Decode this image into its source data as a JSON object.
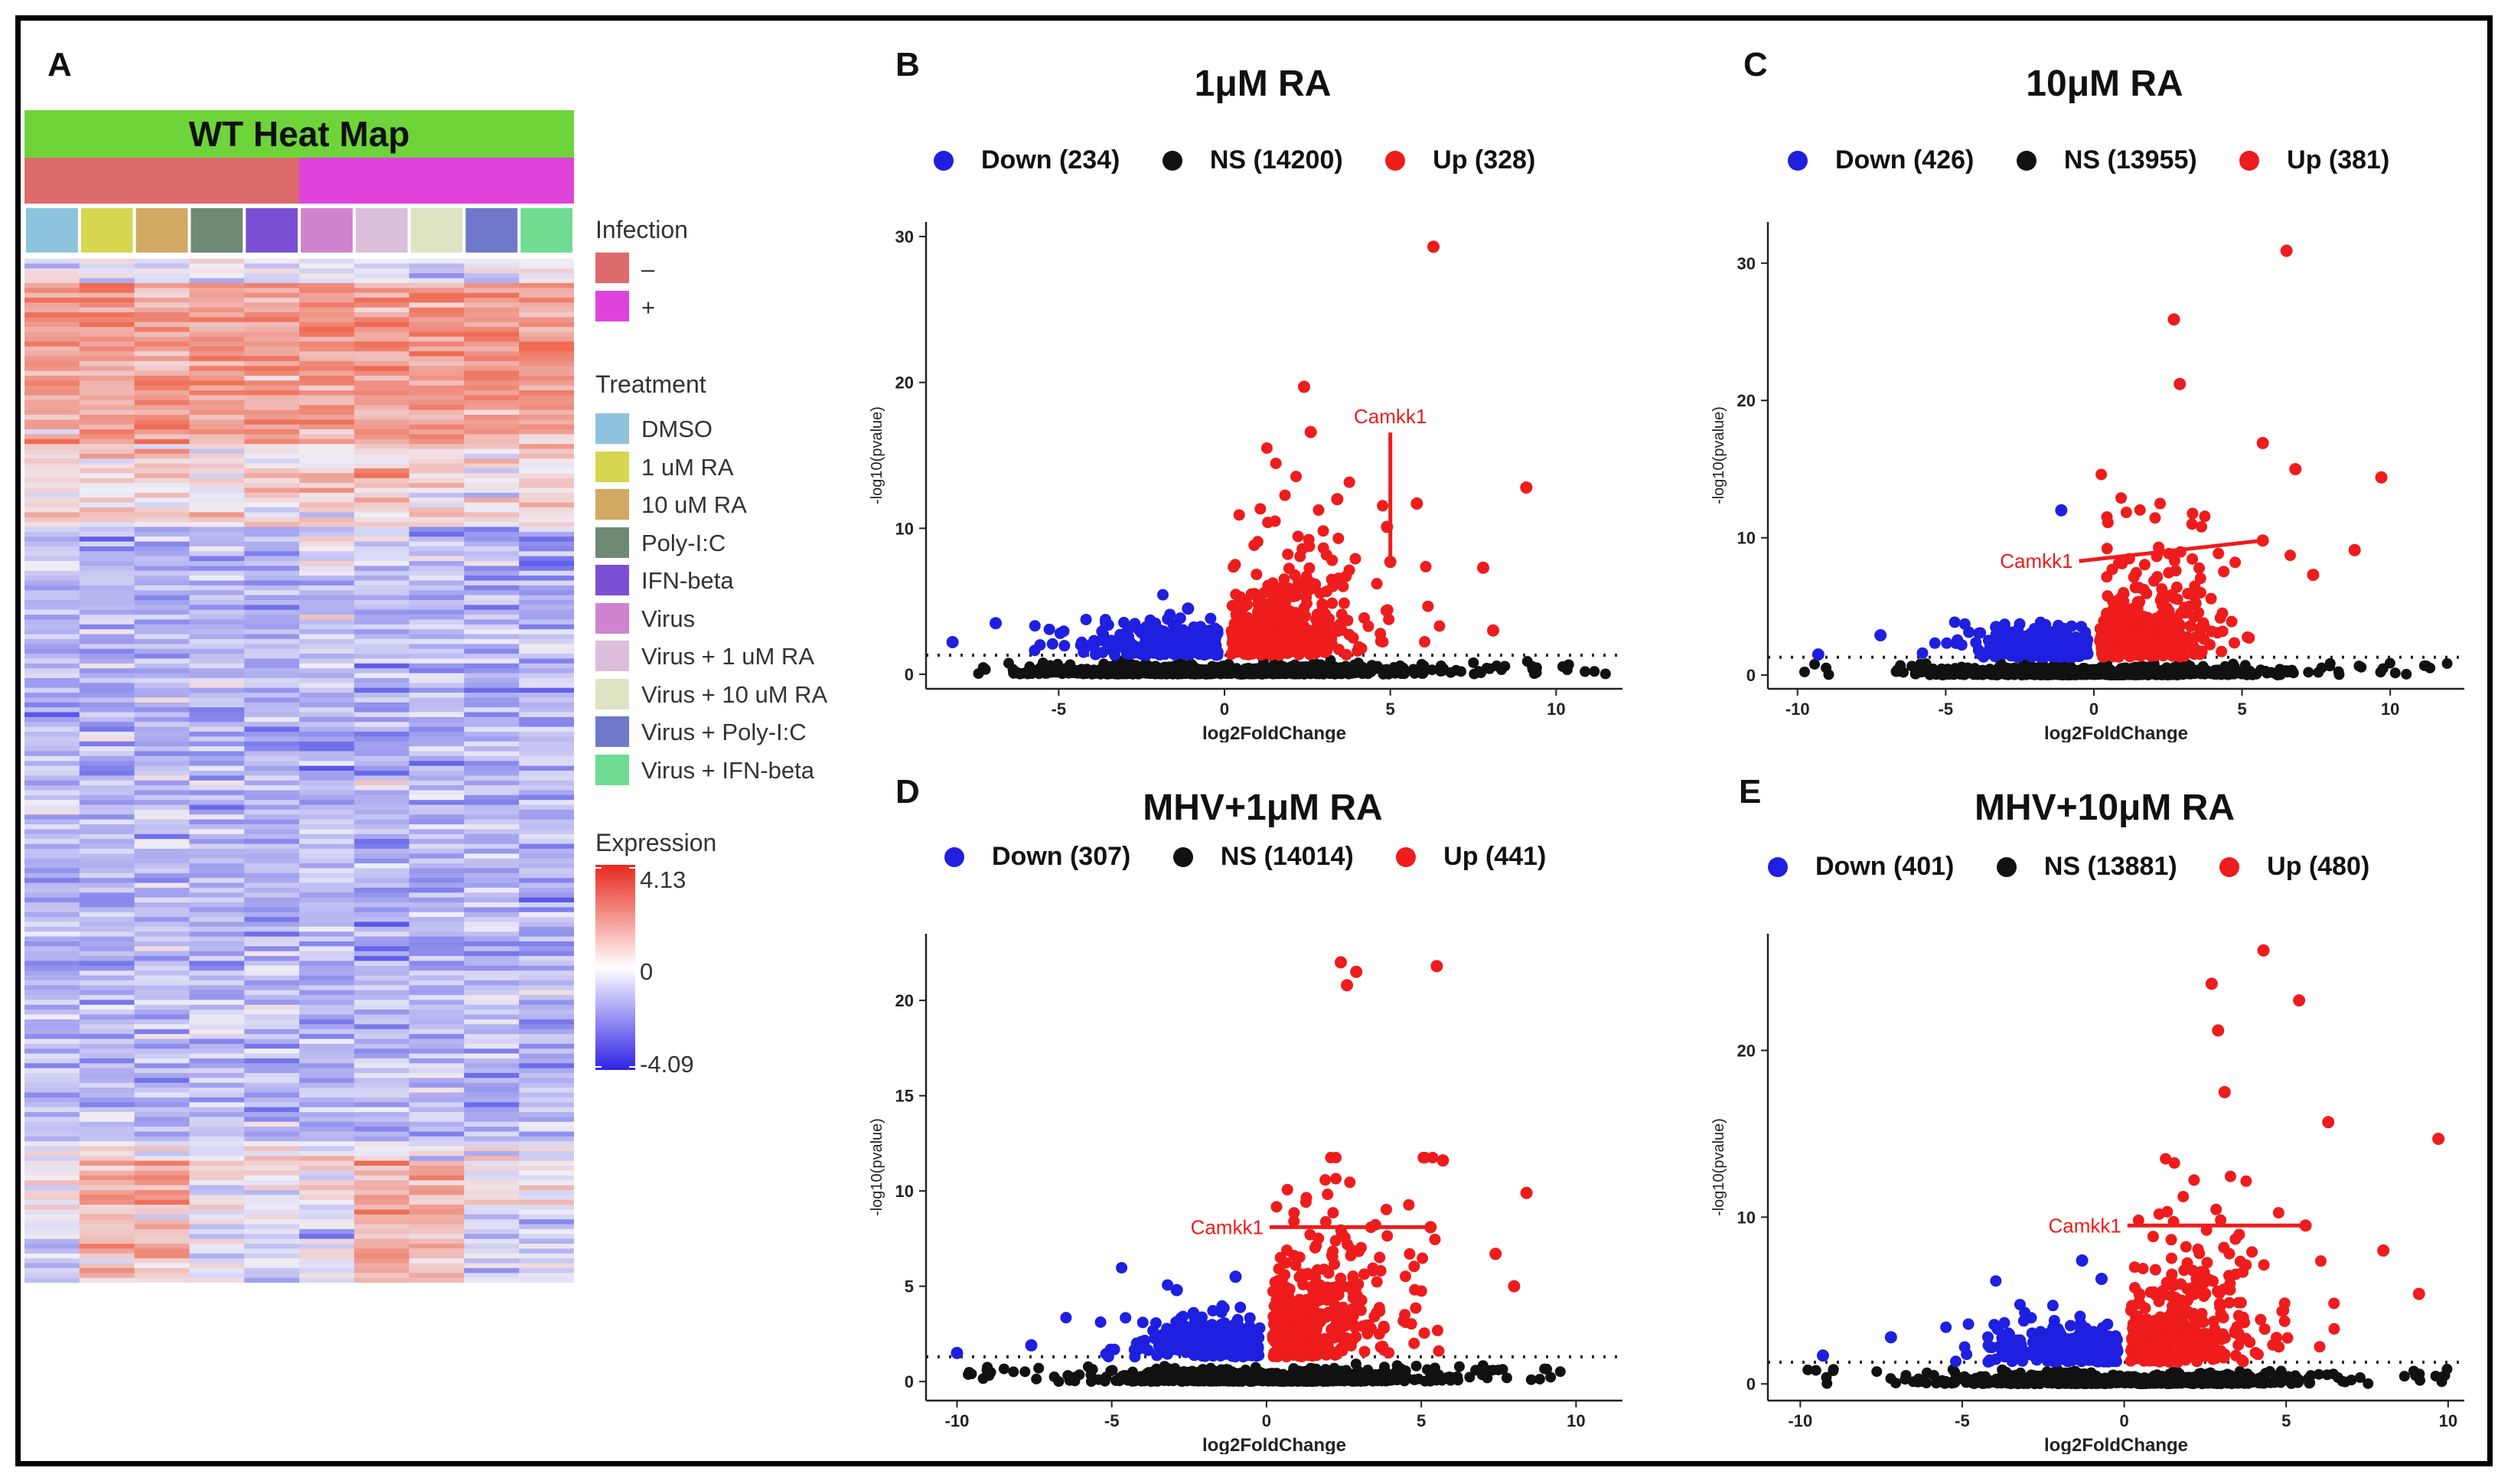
{
  "panel_labels": {
    "a": "A",
    "b": "B",
    "c": "C",
    "d": "D",
    "e": "E"
  },
  "heatmap": {
    "title": "WT Heat Map",
    "title_bar_color": "#6ed43a",
    "infection_legend": {
      "title": "Infection",
      "items": [
        {
          "label": "–",
          "color": "#dd6b6b"
        },
        {
          "label": "+",
          "color": "#e043dc"
        }
      ]
    },
    "treatment_legend": {
      "title": "Treatment",
      "items": [
        {
          "label": "DMSO",
          "color": "#8ec3dd"
        },
        {
          "label": "1 uM RA",
          "color": "#d6d64f"
        },
        {
          "label": "10 uM RA",
          "color": "#d2a863"
        },
        {
          "label": "Poly-I:C",
          "color": "#6f8a74"
        },
        {
          "label": "IFN-beta",
          "color": "#7b4fd3"
        },
        {
          "label": "Virus",
          "color": "#d084d0"
        },
        {
          "label": "Virus + 1 uM RA",
          "color": "#dbbedb"
        },
        {
          "label": "Virus + 10 uM RA",
          "color": "#dfe3c4"
        },
        {
          "label": "Virus + Poly-I:C",
          "color": "#7079c9"
        },
        {
          "label": "Virus + IFN-beta",
          "color": "#6fdc92"
        }
      ]
    },
    "expression_legend": {
      "title": "Expression",
      "max": "4.13",
      "mid": "0",
      "min": "-4.09",
      "high_color": "#e8291c",
      "low_color": "#2f22e6"
    },
    "columns": 10,
    "infection_per_column": [
      "-",
      "-",
      "-",
      "-",
      "-",
      "+",
      "+",
      "+",
      "+",
      "+"
    ]
  },
  "chart_data": [
    {
      "id": "B",
      "type": "scatter",
      "title": "1μM RA",
      "xlabel": "log2FoldChange",
      "ylabel": "-log10(pvalue)",
      "xlim": [
        -9,
        12
      ],
      "ylim": [
        -1,
        31
      ],
      "xticks": [
        -5,
        0,
        5,
        10
      ],
      "yticks": [
        0,
        10,
        20,
        30
      ],
      "legend": [
        {
          "name": "Down",
          "count": "Down (234)",
          "color": "#1f1fe0"
        },
        {
          "name": "NS",
          "count": "NS (14200)",
          "color": "#111111"
        },
        {
          "name": "Up",
          "count": "Up (328)",
          "color": "#ee1c1c"
        }
      ],
      "threshold": 1.3,
      "annotation": {
        "label": "Camkk1",
        "x": 5.0,
        "y": 7.7,
        "label_y": 17.2
      },
      "up_highlights": [
        [
          6.3,
          29.3
        ],
        [
          2.4,
          19.7
        ],
        [
          2.6,
          16.6
        ],
        [
          5.8,
          11.7
        ],
        [
          9.1,
          12.8
        ],
        [
          4.9,
          10.1
        ],
        [
          3.4,
          12.0
        ],
        [
          7.8,
          7.3
        ],
        [
          8.1,
          3.0
        ]
      ],
      "down_highlights": [
        [
          -6.9,
          3.5
        ],
        [
          -8.2,
          2.2
        ],
        [
          -1.1,
          4.5
        ],
        [
          -2.9,
          3.1
        ]
      ],
      "up_range": [
        0.1,
        9.5
      ],
      "down_range": [
        -8.5,
        -0.1
      ],
      "ns_range": [
        -8.5,
        11.5
      ]
    },
    {
      "id": "C",
      "type": "scatter",
      "title": "10μM RA",
      "xlabel": "log2FoldChange",
      "ylabel": "-log10(pvalue)",
      "xlim": [
        -11,
        12.5
      ],
      "ylim": [
        -1,
        33
      ],
      "xticks": [
        -10,
        -5,
        0,
        5,
        10
      ],
      "yticks": [
        0,
        10,
        20,
        30
      ],
      "legend": [
        {
          "name": "Down",
          "count": "Down (426)",
          "color": "#1f1fe0"
        },
        {
          "name": "NS",
          "count": "NS (13955)",
          "color": "#111111"
        },
        {
          "name": "Up",
          "count": "Up (381)",
          "color": "#ee1c1c"
        }
      ],
      "threshold": 1.3,
      "annotation": {
        "label": "Camkk1",
        "x": 5.7,
        "y": 9.8,
        "label_x": -0.5,
        "label_y": 8.3
      },
      "up_highlights": [
        [
          6.5,
          30.9
        ],
        [
          2.7,
          25.9
        ],
        [
          2.9,
          21.2
        ],
        [
          5.7,
          16.9
        ],
        [
          9.7,
          14.4
        ],
        [
          6.8,
          15.0
        ],
        [
          8.8,
          9.1
        ],
        [
          7.4,
          7.3
        ]
      ],
      "down_highlights": [
        [
          -1.1,
          12.0
        ],
        [
          -3.3,
          3.5
        ],
        [
          -7.2,
          2.9
        ],
        [
          -9.3,
          1.5
        ]
      ],
      "up_range": [
        0.1,
        9.8
      ],
      "down_range": [
        -9.8,
        -0.1
      ],
      "ns_range": [
        -10,
        12
      ]
    },
    {
      "id": "D",
      "type": "scatter",
      "title": "MHV+1μM RA",
      "xlabel": "log2FoldChange",
      "ylabel": "-log10(pvalue)",
      "xlim": [
        -11,
        11.5
      ],
      "ylim": [
        -1,
        23.5
      ],
      "xticks": [
        -10,
        -5,
        0,
        5,
        10
      ],
      "yticks": [
        0,
        5,
        10,
        15,
        20
      ],
      "legend": [
        {
          "name": "Down",
          "count": "Down (307)",
          "color": "#1f1fe0"
        },
        {
          "name": "NS",
          "count": "NS (14014)",
          "color": "#111111"
        },
        {
          "name": "Up",
          "count": "Up (441)",
          "color": "#ee1c1c"
        }
      ],
      "threshold": 1.3,
      "annotation": {
        "label": "Camkk1",
        "x": 5.3,
        "y": 8.1,
        "label_x": 0.1,
        "label_y": 8.1
      },
      "up_highlights": [
        [
          2.4,
          22.0
        ],
        [
          2.6,
          20.8
        ],
        [
          2.9,
          21.5
        ],
        [
          5.5,
          21.8
        ],
        [
          5.7,
          11.6
        ],
        [
          8.4,
          9.9
        ],
        [
          7.4,
          6.7
        ],
        [
          8.0,
          5.0
        ]
      ],
      "down_highlights": [
        [
          -1.0,
          5.5
        ],
        [
          -2.9,
          4.8
        ],
        [
          -7.6,
          1.9
        ],
        [
          -10.0,
          1.5
        ]
      ],
      "up_range": [
        0.1,
        8.5
      ],
      "down_range": [
        -10,
        -0.1
      ],
      "ns_range": [
        -10,
        10
      ]
    },
    {
      "id": "E",
      "type": "scatter",
      "title": "MHV+10μM RA",
      "xlabel": "log2FoldChange",
      "ylabel": "-log10(pvalue)",
      "xlim": [
        -11,
        10.5
      ],
      "ylim": [
        -1,
        27
      ],
      "xticks": [
        -10,
        -5,
        0,
        5,
        10
      ],
      "yticks": [
        0,
        10,
        20
      ],
      "legend": [
        {
          "name": "Down",
          "count": "Down (401)",
          "color": "#1f1fe0"
        },
        {
          "name": "NS",
          "count": "NS (13881)",
          "color": "#111111"
        },
        {
          "name": "Up",
          "count": "Up (480)",
          "color": "#ee1c1c"
        }
      ],
      "threshold": 1.3,
      "annotation": {
        "label": "Camkk1",
        "x": 5.6,
        "y": 9.5,
        "label_x": 0.1,
        "label_y": 9.5
      },
      "up_highlights": [
        [
          4.3,
          26.0
        ],
        [
          2.7,
          24.0
        ],
        [
          5.4,
          23.0
        ],
        [
          2.9,
          21.2
        ],
        [
          3.1,
          17.5
        ],
        [
          9.7,
          14.7
        ],
        [
          6.3,
          15.7
        ],
        [
          8.0,
          8.0
        ],
        [
          9.1,
          5.4
        ]
      ],
      "down_highlights": [
        [
          -1.3,
          7.4
        ],
        [
          -0.7,
          6.3
        ],
        [
          -3.9,
          3.3
        ],
        [
          -7.2,
          2.8
        ],
        [
          -9.3,
          1.7
        ]
      ],
      "up_range": [
        0.1,
        9.7
      ],
      "down_range": [
        -10,
        -0.1
      ],
      "ns_range": [
        -10,
        10
      ]
    }
  ]
}
